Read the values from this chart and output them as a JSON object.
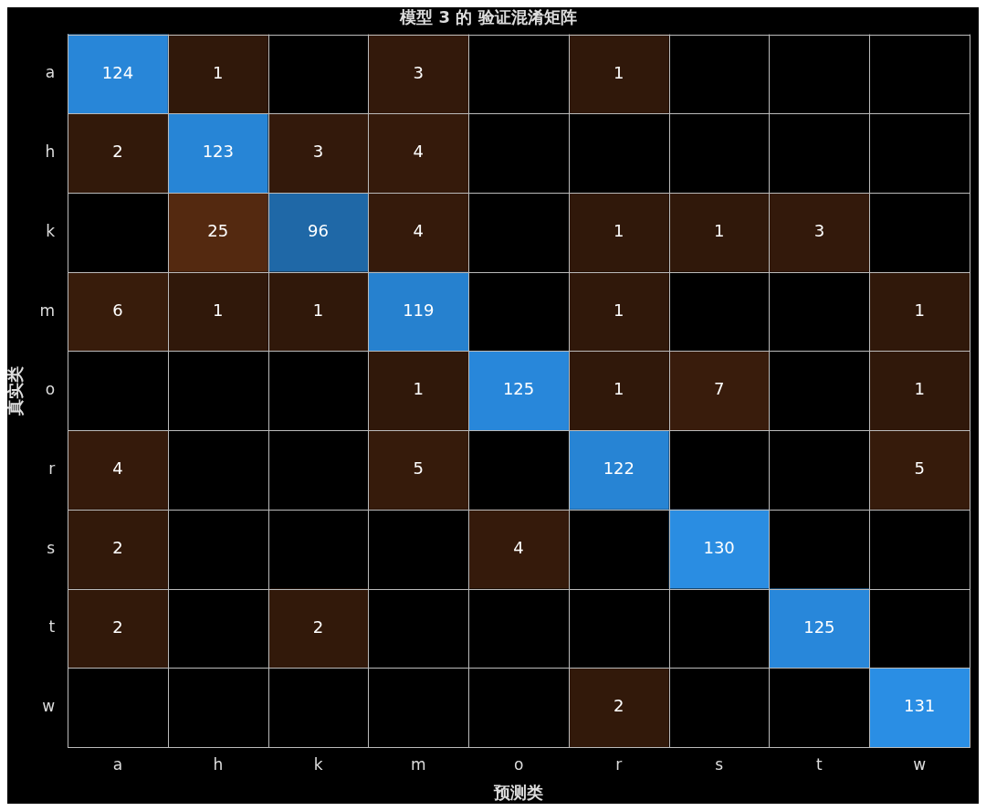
{
  "chart_data": {
    "type": "heatmap",
    "title": "模型 3 的 验证混淆矩阵",
    "xlabel": "预测类",
    "ylabel": "真实类",
    "categories": [
      "a",
      "h",
      "k",
      "m",
      "o",
      "r",
      "s",
      "t",
      "w"
    ],
    "y_categories": [
      "a",
      "h",
      "k",
      "m",
      "o",
      "r",
      "s",
      "t",
      "w"
    ],
    "cells": [
      [
        124,
        1,
        null,
        3,
        null,
        1,
        null,
        null,
        null
      ],
      [
        2,
        123,
        3,
        4,
        null,
        null,
        null,
        null,
        null
      ],
      [
        null,
        25,
        96,
        4,
        null,
        1,
        1,
        3,
        null
      ],
      [
        6,
        1,
        1,
        119,
        null,
        1,
        null,
        null,
        1
      ],
      [
        null,
        null,
        null,
        1,
        125,
        1,
        7,
        null,
        1
      ],
      [
        4,
        null,
        null,
        5,
        null,
        122,
        null,
        null,
        5
      ],
      [
        2,
        null,
        null,
        null,
        4,
        null,
        130,
        null,
        null
      ],
      [
        2,
        null,
        2,
        null,
        null,
        null,
        null,
        125,
        null
      ],
      [
        null,
        null,
        null,
        null,
        null,
        2,
        null,
        null,
        131
      ]
    ],
    "data_labels": true,
    "grid": true
  }
}
